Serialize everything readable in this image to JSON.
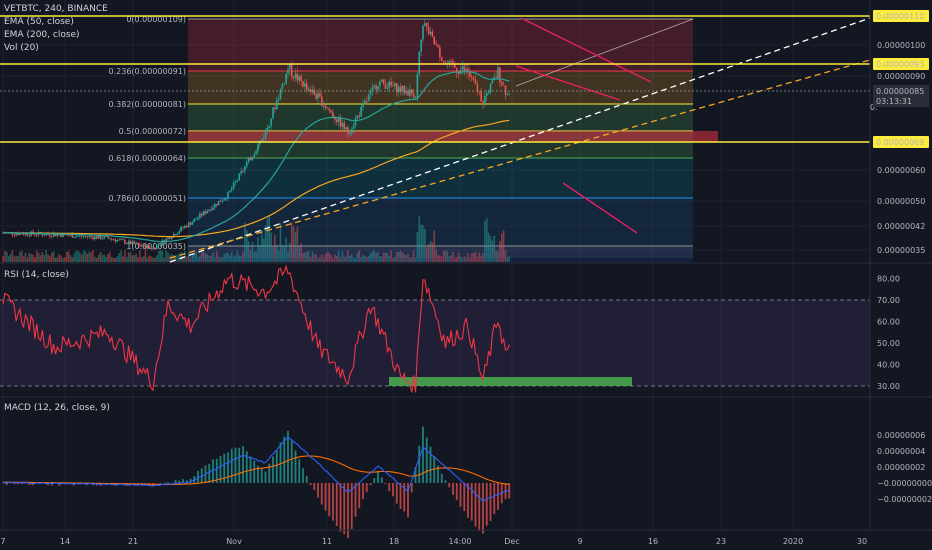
{
  "header": {
    "symbol": "VETBTC, 240, BINANCE",
    "indicators": [
      "EMA (50, close)",
      "EMA (200, close)",
      "Vol (20)"
    ]
  },
  "panes": {
    "rsi_title": "RSI (14, close)",
    "macd_title": "MACD (12, 26, close, 9)"
  },
  "price_axis": {
    "ticks": [
      "0.00000100",
      "0.00000090",
      "0.00000085",
      "0.00000060",
      "0.00000050",
      "0.00000042",
      "0.00000035"
    ],
    "badges": [
      {
        "text": "0.00000110",
        "kind": "yellow"
      },
      {
        "text": "0.00000093",
        "kind": "yellow"
      },
      {
        "text": "0.00000085",
        "kind": "dark"
      },
      {
        "text": "03:13:31",
        "kind": "dark"
      },
      {
        "text": "0.00000069",
        "kind": "yellow"
      }
    ],
    "cutoff_tick": "0."
  },
  "rsi_axis": {
    "ticks": [
      "80.00",
      "70.00",
      "60.00",
      "50.00",
      "40.00",
      "30.00"
    ]
  },
  "macd_axis": {
    "ticks": [
      "0.00000006",
      "0.00000004",
      "0.00000002",
      "−0.00000000",
      "−0.00000002"
    ]
  },
  "time_axis": {
    "ticks": [
      "7",
      "14",
      "21",
      "Nov",
      "11",
      "18",
      "14:00",
      "Dec",
      "9",
      "16",
      "23",
      "2020",
      "30"
    ]
  },
  "fib_levels": [
    {
      "label": "0(0.00000109)",
      "color": "#9598a1"
    },
    {
      "label": "0.236(0.00000091)",
      "color": "#f23645"
    },
    {
      "label": "0.382(0.00000081)",
      "color": "#ffeb3b"
    },
    {
      "label": "0.5(0.00000072)",
      "color": "#ffeb3b"
    },
    {
      "label": "0.618(0.00000064)",
      "color": "#4caf50"
    },
    {
      "label": "0.786(0.00000051)",
      "color": "#2196f3"
    },
    {
      "label": "1(0.00000035)",
      "color": "#9598a1"
    }
  ],
  "colors": {
    "background": "#131722",
    "up": "#26a69a",
    "down": "#ef5350",
    "ema50": "#26a69a",
    "ema200": "#f5a623",
    "rsi": "#f23645",
    "macd": "#2962ff",
    "signal": "#ff6d00",
    "yellow_line": "#ffeb3b",
    "channel": "#e91e63"
  },
  "chart_data": {
    "type": "candlestick",
    "symbol": "VETBTC",
    "interval": "240",
    "exchange": "BINANCE",
    "y_range_price": [
      3e-07,
      1.125e-06
    ],
    "horizontal_levels": [
      1.1e-06,
      9.3e-07,
      6.9e-07
    ],
    "last_price": 8.5e-07,
    "close_approx": [
      {
        "x": "Oct 7",
        "y": 4e-07
      },
      {
        "x": "Oct 14",
        "y": 3.95e-07
      },
      {
        "x": "Oct 21",
        "y": 3.85e-07
      },
      {
        "x": "Oct 27",
        "y": 3.55e-07
      },
      {
        "x": "Nov 1",
        "y": 4.3e-07
      },
      {
        "x": "Nov 6",
        "y": 5.2e-07
      },
      {
        "x": "Nov 11",
        "y": 7.2e-07
      },
      {
        "x": "Nov 14",
        "y": 9.2e-07
      },
      {
        "x": "Nov 18",
        "y": 8.3e-07
      },
      {
        "x": "Nov 22",
        "y": 7.2e-07
      },
      {
        "x": "Nov 26",
        "y": 8.8e-07
      },
      {
        "x": "Dec 1",
        "y": 8.4e-07
      },
      {
        "x": "Dec 2",
        "y": 1.08e-06
      },
      {
        "x": "Dec 5",
        "y": 9.3e-07
      },
      {
        "x": "Dec 8",
        "y": 9.1e-07
      },
      {
        "x": "Dec 10",
        "y": 8.2e-07
      },
      {
        "x": "Dec 12",
        "y": 9.1e-07
      },
      {
        "x": "Dec 13",
        "y": 8.5e-07
      }
    ],
    "rsi_range": [
      25,
      85
    ],
    "rsi_approx": [
      {
        "x": "Oct 7",
        "y": 70
      },
      {
        "x": "Oct 14",
        "y": 48
      },
      {
        "x": "Oct 21",
        "y": 55
      },
      {
        "x": "Oct 27",
        "y": 32
      },
      {
        "x": "Oct 29",
        "y": 68
      },
      {
        "x": "Nov 1",
        "y": 58
      },
      {
        "x": "Nov 6",
        "y": 80
      },
      {
        "x": "Nov 11",
        "y": 74
      },
      {
        "x": "Nov 14",
        "y": 84
      },
      {
        "x": "Nov 18",
        "y": 48
      },
      {
        "x": "Nov 22",
        "y": 34
      },
      {
        "x": "Nov 25",
        "y": 68
      },
      {
        "x": "Nov 29",
        "y": 34
      },
      {
        "x": "Dec 1",
        "y": 30
      },
      {
        "x": "Dec 2",
        "y": 82
      },
      {
        "x": "Dec 5",
        "y": 50
      },
      {
        "x": "Dec 8",
        "y": 58
      },
      {
        "x": "Dec 10",
        "y": 32
      },
      {
        "x": "Dec 12",
        "y": 62
      },
      {
        "x": "Dec 13",
        "y": 46
      }
    ],
    "macd_range": [
      -2.8e-08,
      6.2e-08
    ],
    "macd_approx": [
      {
        "x": "Oct 7",
        "y": 5e-10
      },
      {
        "x": "Oct 21",
        "y": -1.5e-09
      },
      {
        "x": "Oct 27",
        "y": -3e-09
      },
      {
        "x": "Nov 1",
        "y": 1e-09
      },
      {
        "x": "Nov 8",
        "y": 3.5e-08
      },
      {
        "x": "Nov 11",
        "y": 2.5e-08
      },
      {
        "x": "Nov 14",
        "y": 5.8e-08
      },
      {
        "x": "Nov 18",
        "y": 2.5e-08
      },
      {
        "x": "Nov 22",
        "y": -1.2e-08
      },
      {
        "x": "Nov 26",
        "y": 2.1e-08
      },
      {
        "x": "Nov 30",
        "y": -1e-08
      },
      {
        "x": "Dec 2",
        "y": 4.5e-08
      },
      {
        "x": "Dec 6",
        "y": 1.2e-08
      },
      {
        "x": "Dec 10",
        "y": -2.2e-08
      },
      {
        "x": "Dec 13",
        "y": -1e-08
      }
    ]
  }
}
